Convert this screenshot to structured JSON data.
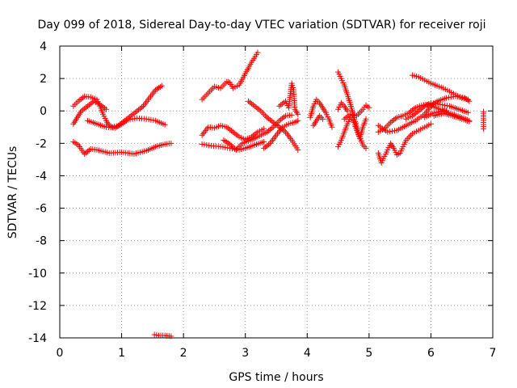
{
  "chart_data": {
    "type": "scatter",
    "title": "Day 099 of 2018, Sidereal Day-to-day VTEC variation (SDTVAR) for receiver roji",
    "xlabel": "GPS time / hours",
    "ylabel": "SDTVAR / TECUs",
    "xlim": [
      0,
      7
    ],
    "ylim": [
      -14,
      4
    ],
    "xticks": [
      "0",
      "1",
      "2",
      "3",
      "4",
      "5",
      "6",
      "7"
    ],
    "yticks": [
      "4",
      "2",
      "0",
      "-2",
      "-4",
      "-6",
      "-8",
      "-10",
      "-12",
      "-14"
    ],
    "grid": true,
    "marker": "+",
    "color": "#ff0000",
    "series": [
      {
        "tracks": [
          [
            [
              0.22,
              0.3
            ],
            [
              0.3,
              0.6
            ],
            [
              0.4,
              0.9
            ],
            [
              0.5,
              0.85
            ],
            [
              0.6,
              0.7
            ],
            [
              0.65,
              0.3
            ],
            [
              0.7,
              -0.2
            ],
            [
              0.75,
              -0.6
            ],
            [
              0.8,
              -0.9
            ],
            [
              0.85,
              -1.0
            ]
          ],
          [
            [
              0.85,
              -1.0
            ],
            [
              0.95,
              -0.9
            ],
            [
              1.05,
              -0.6
            ],
            [
              1.15,
              -0.3
            ],
            [
              1.25,
              0.0
            ],
            [
              1.35,
              0.3
            ],
            [
              1.45,
              0.8
            ],
            [
              1.55,
              1.3
            ],
            [
              1.65,
              1.55
            ]
          ],
          [
            [
              0.22,
              -0.8
            ],
            [
              0.3,
              -0.3
            ],
            [
              0.35,
              0.0
            ],
            [
              0.45,
              0.3
            ],
            [
              0.55,
              0.6
            ],
            [
              0.65,
              0.4
            ],
            [
              0.75,
              0.1
            ]
          ],
          [
            [
              0.45,
              -0.6
            ],
            [
              0.6,
              -0.8
            ],
            [
              0.75,
              -1.0
            ],
            [
              0.9,
              -1.05
            ],
            [
              1.0,
              -0.8
            ],
            [
              1.1,
              -0.55
            ],
            [
              1.25,
              -0.45
            ],
            [
              1.4,
              -0.5
            ],
            [
              1.55,
              -0.6
            ],
            [
              1.7,
              -0.85
            ]
          ],
          [
            [
              0.22,
              -1.9
            ],
            [
              0.3,
              -2.1
            ],
            [
              0.4,
              -2.65
            ],
            [
              0.5,
              -2.35
            ],
            [
              0.6,
              -2.4
            ],
            [
              0.8,
              -2.6
            ],
            [
              1.0,
              -2.55
            ],
            [
              1.2,
              -2.65
            ],
            [
              1.4,
              -2.45
            ],
            [
              1.55,
              -2.2
            ],
            [
              1.7,
              -2.05
            ],
            [
              1.8,
              -2.0
            ]
          ],
          [
            [
              1.53,
              -13.8
            ],
            [
              1.6,
              -13.85
            ],
            [
              1.7,
              -13.85
            ],
            [
              1.8,
              -13.9
            ]
          ],
          [
            [
              2.3,
              0.7
            ],
            [
              2.4,
              1.1
            ],
            [
              2.5,
              1.5
            ],
            [
              2.6,
              1.4
            ],
            [
              2.7,
              1.8
            ],
            [
              2.75,
              1.75
            ],
            [
              2.8,
              1.4
            ],
            [
              2.9,
              1.6
            ],
            [
              3.0,
              2.3
            ],
            [
              3.1,
              3.0
            ],
            [
              3.2,
              3.6
            ]
          ],
          [
            [
              2.3,
              -1.5
            ],
            [
              2.4,
              -1.0
            ],
            [
              2.5,
              -1.05
            ],
            [
              2.6,
              -0.9
            ],
            [
              2.7,
              -1.0
            ],
            [
              2.8,
              -1.3
            ],
            [
              2.9,
              -1.6
            ],
            [
              3.0,
              -1.75
            ],
            [
              3.1,
              -1.6
            ],
            [
              3.2,
              -1.3
            ],
            [
              3.3,
              -1.1
            ]
          ],
          [
            [
              2.3,
              -2.05
            ],
            [
              2.45,
              -2.15
            ],
            [
              2.6,
              -2.2
            ],
            [
              2.75,
              -2.3
            ],
            [
              2.9,
              -2.4
            ],
            [
              3.0,
              -2.3
            ],
            [
              3.15,
              -2.1
            ],
            [
              3.3,
              -1.9
            ]
          ],
          [
            [
              2.65,
              -1.8
            ],
            [
              2.75,
              -2.05
            ],
            [
              2.85,
              -2.4
            ],
            [
              2.95,
              -2.0
            ],
            [
              3.05,
              -1.85
            ],
            [
              3.2,
              -1.6
            ],
            [
              3.35,
              -1.3
            ],
            [
              3.45,
              -1.0
            ],
            [
              3.55,
              -0.6
            ],
            [
              3.65,
              -0.3
            ],
            [
              3.75,
              -0.25
            ]
          ],
          [
            [
              3.05,
              0.6
            ],
            [
              3.15,
              0.3
            ],
            [
              3.25,
              0.0
            ],
            [
              3.35,
              -0.4
            ],
            [
              3.45,
              -0.7
            ],
            [
              3.55,
              -1.0
            ],
            [
              3.65,
              -1.3
            ],
            [
              3.75,
              -1.8
            ],
            [
              3.85,
              -2.4
            ]
          ],
          [
            [
              3.3,
              -2.3
            ],
            [
              3.4,
              -2.0
            ],
            [
              3.5,
              -1.5
            ],
            [
              3.6,
              -1.0
            ],
            [
              3.7,
              -0.8
            ],
            [
              3.8,
              -0.7
            ],
            [
              3.85,
              -0.6
            ]
          ],
          [
            [
              3.55,
              0.3
            ],
            [
              3.65,
              0.6
            ],
            [
              3.7,
              0.2
            ],
            [
              3.75,
              1.7
            ],
            [
              3.78,
              1.3
            ],
            [
              3.8,
              0.1
            ],
            [
              3.85,
              -0.2
            ]
          ],
          [
            [
              4.05,
              -0.4
            ],
            [
              4.1,
              0.3
            ],
            [
              4.15,
              0.7
            ],
            [
              4.2,
              0.5
            ],
            [
              4.25,
              0.2
            ],
            [
              4.3,
              -0.1
            ],
            [
              4.35,
              -0.5
            ],
            [
              4.4,
              -1.0
            ]
          ],
          [
            [
              4.1,
              -0.9
            ],
            [
              4.15,
              -0.6
            ],
            [
              4.2,
              -0.3
            ],
            [
              4.25,
              -0.5
            ]
          ],
          [
            [
              4.5,
              2.4
            ],
            [
              4.55,
              2.0
            ],
            [
              4.6,
              1.6
            ],
            [
              4.65,
              1.0
            ],
            [
              4.7,
              0.4
            ],
            [
              4.75,
              -0.3
            ],
            [
              4.8,
              -1.0
            ],
            [
              4.85,
              -1.6
            ],
            [
              4.9,
              -2.1
            ],
            [
              4.95,
              -2.3
            ]
          ],
          [
            [
              4.5,
              -2.2
            ],
            [
              4.55,
              -1.8
            ],
            [
              4.6,
              -1.3
            ],
            [
              4.65,
              -0.8
            ],
            [
              4.7,
              -0.4
            ],
            [
              4.75,
              -0.6
            ],
            [
              4.8,
              -1.2
            ],
            [
              4.85,
              -1.7
            ],
            [
              4.9,
              -1.0
            ],
            [
              4.95,
              -0.5
            ]
          ],
          [
            [
              4.6,
              -0.5
            ],
            [
              4.7,
              -0.2
            ],
            [
              4.8,
              -0.3
            ],
            [
              4.9,
              0.1
            ],
            [
              4.95,
              0.35
            ],
            [
              5.0,
              0.2
            ]
          ],
          [
            [
              4.5,
              0.1
            ],
            [
              4.55,
              0.5
            ],
            [
              4.6,
              0.3
            ],
            [
              4.65,
              0.0
            ]
          ],
          [
            [
              5.15,
              -2.6
            ],
            [
              5.2,
              -3.2
            ],
            [
              5.25,
              -2.8
            ],
            [
              5.3,
              -2.4
            ],
            [
              5.35,
              -2.0
            ],
            [
              5.4,
              -2.3
            ],
            [
              5.45,
              -2.7
            ],
            [
              5.5,
              -2.6
            ],
            [
              5.55,
              -2.2
            ],
            [
              5.6,
              -1.8
            ],
            [
              5.7,
              -1.4
            ],
            [
              5.8,
              -1.2
            ],
            [
              5.9,
              -1.0
            ],
            [
              6.0,
              -0.8
            ]
          ],
          [
            [
              5.15,
              -1.3
            ],
            [
              5.25,
              -1.1
            ],
            [
              5.35,
              -0.7
            ],
            [
              5.45,
              -0.4
            ],
            [
              5.55,
              -0.3
            ],
            [
              5.65,
              -0.1
            ],
            [
              5.75,
              0.2
            ],
            [
              5.85,
              0.35
            ],
            [
              5.95,
              0.4
            ],
            [
              6.05,
              0.25
            ],
            [
              6.15,
              0.1
            ],
            [
              6.25,
              0.0
            ]
          ],
          [
            [
              5.15,
              -0.9
            ],
            [
              5.3,
              -1.3
            ],
            [
              5.45,
              -1.2
            ],
            [
              5.6,
              -0.9
            ],
            [
              5.75,
              -0.6
            ],
            [
              5.9,
              -0.2
            ],
            [
              6.0,
              0.3
            ],
            [
              6.1,
              0.6
            ],
            [
              6.25,
              0.8
            ],
            [
              6.4,
              0.9
            ],
            [
              6.55,
              0.8
            ],
            [
              6.62,
              0.6
            ]
          ],
          [
            [
              5.6,
              -0.5
            ],
            [
              5.7,
              -0.3
            ],
            [
              5.8,
              0.0
            ],
            [
              5.9,
              0.3
            ],
            [
              6.0,
              0.5
            ],
            [
              6.15,
              0.4
            ],
            [
              6.3,
              0.3
            ],
            [
              6.45,
              0.1
            ],
            [
              6.6,
              -0.1
            ]
          ],
          [
            [
              5.7,
              2.2
            ],
            [
              5.8,
              2.1
            ],
            [
              5.9,
              1.9
            ],
            [
              6.0,
              1.7
            ],
            [
              6.1,
              1.55
            ],
            [
              6.2,
              1.4
            ],
            [
              6.3,
              1.2
            ],
            [
              6.4,
              1.0
            ],
            [
              6.5,
              0.8
            ],
            [
              6.6,
              0.7
            ]
          ],
          [
            [
              5.9,
              -0.4
            ],
            [
              6.05,
              -0.1
            ],
            [
              6.2,
              0.0
            ],
            [
              6.35,
              -0.2
            ],
            [
              6.5,
              -0.4
            ],
            [
              6.62,
              -0.6
            ]
          ],
          [
            [
              6.05,
              -0.3
            ],
            [
              6.2,
              -0.15
            ],
            [
              6.35,
              -0.3
            ],
            [
              6.5,
              -0.5
            ],
            [
              6.62,
              -0.65
            ]
          ],
          [
            [
              6.85,
              -0.05
            ],
            [
              6.85,
              -1.1
            ]
          ]
        ]
      }
    ]
  }
}
